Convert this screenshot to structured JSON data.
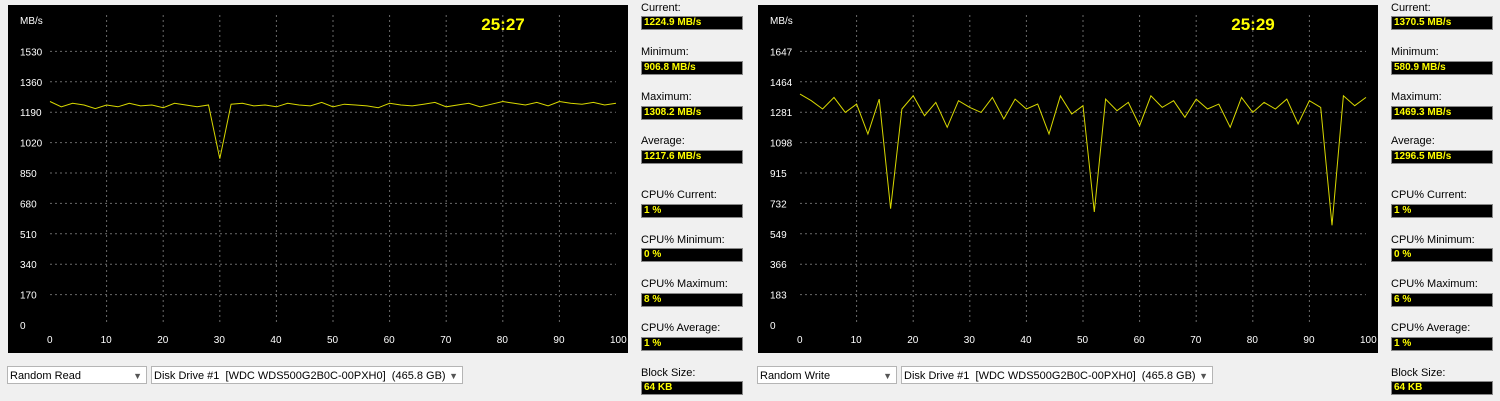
{
  "panels": [
    {
      "timer": "25:27",
      "unit": "MB/s",
      "y_ticks": [
        "1530",
        "1360",
        "1190",
        "1020",
        "850",
        "680",
        "510",
        "340",
        "170",
        "0"
      ],
      "x_ticks": [
        "0",
        "10",
        "20",
        "30",
        "40",
        "50",
        "60",
        "70",
        "80",
        "90",
        "100 %"
      ],
      "stats": {
        "current_label": "Current:",
        "current": "1224.9 MB/s",
        "minimum_label": "Minimum:",
        "minimum": "906.8 MB/s",
        "maximum_label": "Maximum:",
        "maximum": "1308.2 MB/s",
        "average_label": "Average:",
        "average": "1217.6 MB/s",
        "cpu_current_label": "CPU% Current:",
        "cpu_current": "1 %",
        "cpu_minimum_label": "CPU% Minimum:",
        "cpu_minimum": "0 %",
        "cpu_maximum_label": "CPU% Maximum:",
        "cpu_maximum": "8 %",
        "cpu_average_label": "CPU% Average:",
        "cpu_average": "1 %",
        "block_size_label": "Block Size:",
        "block_size": "64 KB"
      },
      "test_select": "Random Read",
      "drive_select": "Disk Drive #1  [WDC WDS500G2B0C-00PXH0]  (465.8 GB)"
    },
    {
      "timer": "25:29",
      "unit": "MB/s",
      "y_ticks": [
        "1647",
        "1464",
        "1281",
        "1098",
        "915",
        "732",
        "549",
        "366",
        "183",
        "0"
      ],
      "x_ticks": [
        "0",
        "10",
        "20",
        "30",
        "40",
        "50",
        "60",
        "70",
        "80",
        "90",
        "100 %"
      ],
      "stats": {
        "current_label": "Current:",
        "current": "1370.5 MB/s",
        "minimum_label": "Minimum:",
        "minimum": "580.9 MB/s",
        "maximum_label": "Maximum:",
        "maximum": "1469.3 MB/s",
        "average_label": "Average:",
        "average": "1296.5 MB/s",
        "cpu_current_label": "CPU% Current:",
        "cpu_current": "1 %",
        "cpu_minimum_label": "CPU% Minimum:",
        "cpu_minimum": "0 %",
        "cpu_maximum_label": "CPU% Maximum:",
        "cpu_maximum": "6 %",
        "cpu_average_label": "CPU% Average:",
        "cpu_average": "1 %",
        "block_size_label": "Block Size:",
        "block_size": "64 KB"
      },
      "test_select": "Random Write",
      "drive_select": "Disk Drive #1  [WDC WDS500G2B0C-00PXH0]  (465.8 GB)"
    }
  ],
  "colors": {
    "graph_bg": "#000000",
    "grid": "#6a6a6a",
    "trace": "#d8d800",
    "axis_text": "#ffffff",
    "timer": "#ffff00",
    "value_text": "#ffff00"
  },
  "chart_data": [
    {
      "type": "line",
      "title": "",
      "xlabel": "%",
      "ylabel": "MB/s",
      "xlim": [
        0,
        100
      ],
      "ylim": [
        0,
        1700
      ],
      "grid": true,
      "series": [
        {
          "x": [
            0,
            2,
            4,
            6,
            8,
            10,
            12,
            14,
            16,
            18,
            20,
            22,
            24,
            26,
            28,
            30,
            32,
            34,
            36,
            38,
            40,
            42,
            44,
            46,
            48,
            50,
            52,
            54,
            56,
            58,
            60,
            62,
            64,
            66,
            68,
            70,
            72,
            74,
            76,
            78,
            80,
            82,
            84,
            86,
            88,
            90,
            92,
            94,
            96,
            98,
            100
          ],
          "values": [
            1250,
            1220,
            1240,
            1230,
            1210,
            1230,
            1220,
            1240,
            1225,
            1230,
            1215,
            1240,
            1230,
            1220,
            1230,
            930,
            1235,
            1240,
            1225,
            1230,
            1220,
            1240,
            1230,
            1225,
            1245,
            1220,
            1235,
            1230,
            1225,
            1215,
            1240,
            1230,
            1225,
            1235,
            1245,
            1220,
            1230,
            1240,
            1220,
            1235,
            1250,
            1240,
            1230,
            1245,
            1225,
            1250,
            1240,
            1235,
            1245,
            1230,
            1240
          ]
        }
      ]
    },
    {
      "type": "line",
      "title": "",
      "xlabel": "%",
      "ylabel": "MB/s",
      "xlim": [
        0,
        100
      ],
      "ylim": [
        0,
        1830
      ],
      "grid": true,
      "series": [
        {
          "x": [
            0,
            2,
            4,
            6,
            8,
            10,
            12,
            14,
            16,
            18,
            20,
            22,
            24,
            26,
            28,
            30,
            32,
            34,
            36,
            38,
            40,
            42,
            44,
            46,
            48,
            50,
            52,
            54,
            56,
            58,
            60,
            62,
            64,
            66,
            68,
            70,
            72,
            74,
            76,
            78,
            80,
            82,
            84,
            86,
            88,
            90,
            92,
            94,
            96,
            98,
            100
          ],
          "values": [
            1390,
            1350,
            1300,
            1370,
            1280,
            1330,
            1150,
            1360,
            700,
            1300,
            1380,
            1260,
            1340,
            1190,
            1350,
            1310,
            1280,
            1370,
            1240,
            1360,
            1300,
            1330,
            1150,
            1380,
            1270,
            1320,
            680,
            1360,
            1290,
            1340,
            1200,
            1380,
            1310,
            1350,
            1250,
            1360,
            1300,
            1330,
            1190,
            1370,
            1280,
            1340,
            1300,
            1360,
            1210,
            1350,
            1310,
            600,
            1380,
            1320,
            1370
          ]
        }
      ]
    }
  ]
}
